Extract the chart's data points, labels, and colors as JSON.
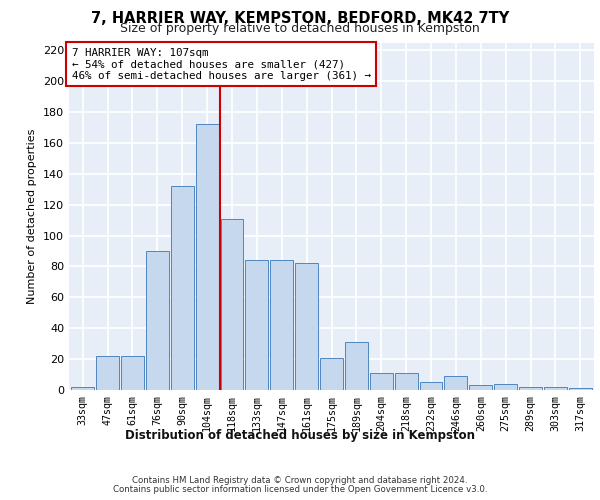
{
  "title": "7, HARRIER WAY, KEMPSTON, BEDFORD, MK42 7TY",
  "subtitle": "Size of property relative to detached houses in Kempston",
  "xlabel": "Distribution of detached houses by size in Kempston",
  "ylabel": "Number of detached properties",
  "categories": [
    "33sqm",
    "47sqm",
    "61sqm",
    "76sqm",
    "90sqm",
    "104sqm",
    "118sqm",
    "133sqm",
    "147sqm",
    "161sqm",
    "175sqm",
    "189sqm",
    "204sqm",
    "218sqm",
    "232sqm",
    "246sqm",
    "260sqm",
    "275sqm",
    "289sqm",
    "303sqm",
    "317sqm"
  ],
  "values": [
    2,
    22,
    22,
    90,
    132,
    172,
    111,
    84,
    84,
    82,
    21,
    31,
    11,
    11,
    5,
    9,
    3,
    4,
    2,
    2,
    1
  ],
  "bar_color": "#c5d8ed",
  "bar_edge_color": "#4f86c0",
  "property_label": "7 HARRIER WAY: 107sqm",
  "annotation_line1": "← 54% of detached houses are smaller (427)",
  "annotation_line2": "46% of semi-detached houses are larger (361) →",
  "vline_position": 5.5,
  "vline_color": "#cc0000",
  "annotation_box_color": "#cc0000",
  "ylim": [
    0,
    225
  ],
  "yticks": [
    0,
    20,
    40,
    60,
    80,
    100,
    120,
    140,
    160,
    180,
    200,
    220
  ],
  "background_color": "#e8eef8",
  "grid_color": "#ffffff",
  "footer_line1": "Contains HM Land Registry data © Crown copyright and database right 2024.",
  "footer_line2": "Contains public sector information licensed under the Open Government Licence v3.0."
}
